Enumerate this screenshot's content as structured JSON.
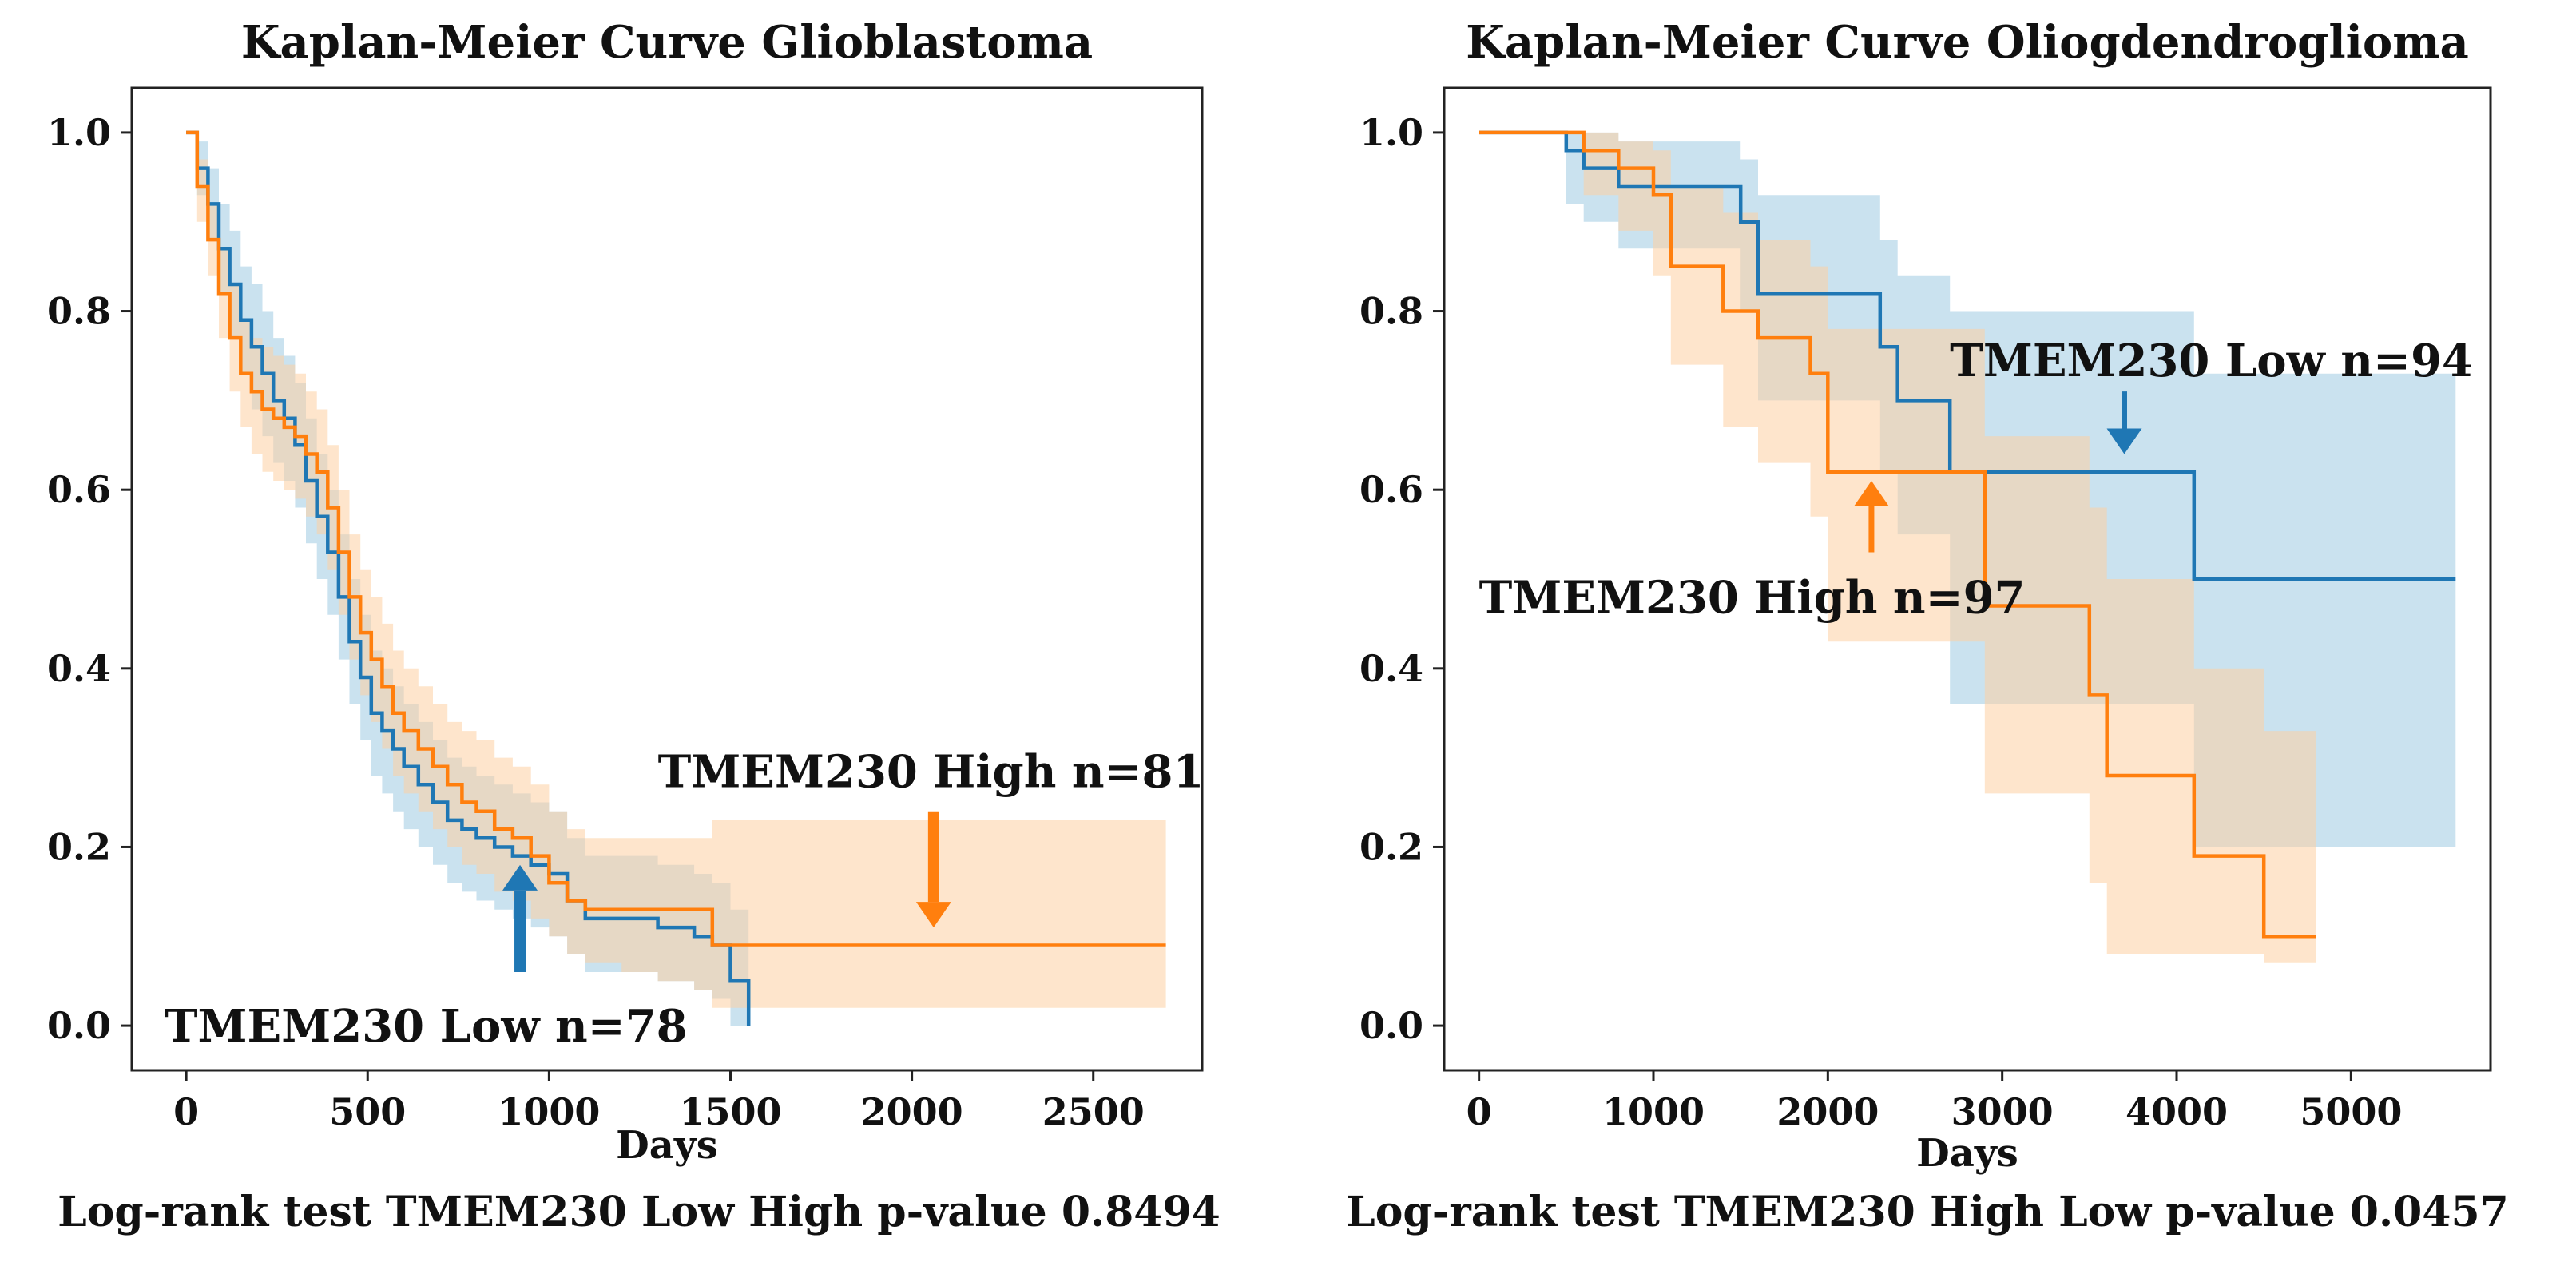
{
  "chart_data": [
    {
      "type": "line",
      "subtype": "kaplan-meier",
      "title": "Kaplan-Meier Curve Glioblastoma",
      "xlabel": "Days",
      "ylabel": "",
      "xlim": [
        -150,
        2800
      ],
      "ylim": [
        -0.05,
        1.05
      ],
      "xticks": [
        0,
        500,
        1000,
        1500,
        2000,
        2500
      ],
      "yticks": [
        0.0,
        0.2,
        0.4,
        0.6,
        0.8,
        1.0
      ],
      "xtick_labels": [
        "0",
        "500",
        "1000",
        "1500",
        "2000",
        "2500"
      ],
      "ytick_labels": [
        "0.0",
        "0.2",
        "0.4",
        "0.6",
        "0.8",
        "1.0"
      ],
      "footer": "Log-rank test TMEM230 Low High p-value 0.8494",
      "series": [
        {
          "name": "TMEM230 Low",
          "color": "#1f77b4",
          "band_color": "#9ecae1",
          "x": [
            0,
            30,
            60,
            90,
            120,
            150,
            180,
            210,
            240,
            270,
            300,
            330,
            360,
            390,
            420,
            450,
            480,
            510,
            540,
            570,
            600,
            640,
            680,
            720,
            760,
            800,
            850,
            900,
            950,
            1000,
            1050,
            1100,
            1200,
            1300,
            1400,
            1450,
            1500,
            1550
          ],
          "y": [
            1.0,
            0.96,
            0.92,
            0.87,
            0.83,
            0.79,
            0.76,
            0.73,
            0.7,
            0.68,
            0.65,
            0.61,
            0.57,
            0.53,
            0.48,
            0.43,
            0.39,
            0.35,
            0.33,
            0.31,
            0.29,
            0.27,
            0.25,
            0.23,
            0.22,
            0.21,
            0.2,
            0.19,
            0.18,
            0.17,
            0.14,
            0.12,
            0.12,
            0.11,
            0.1,
            0.09,
            0.05,
            0.0
          ],
          "lower": [
            1.0,
            0.93,
            0.88,
            0.82,
            0.77,
            0.73,
            0.69,
            0.66,
            0.63,
            0.61,
            0.58,
            0.54,
            0.5,
            0.46,
            0.41,
            0.36,
            0.32,
            0.28,
            0.26,
            0.24,
            0.22,
            0.2,
            0.18,
            0.16,
            0.15,
            0.14,
            0.13,
            0.12,
            0.11,
            0.1,
            0.08,
            0.06,
            0.06,
            0.05,
            0.04,
            0.03,
            0.0,
            0.0
          ],
          "upper": [
            1.0,
            0.99,
            0.96,
            0.92,
            0.89,
            0.85,
            0.83,
            0.8,
            0.77,
            0.75,
            0.72,
            0.68,
            0.64,
            0.6,
            0.55,
            0.5,
            0.46,
            0.42,
            0.4,
            0.38,
            0.36,
            0.34,
            0.32,
            0.3,
            0.29,
            0.28,
            0.27,
            0.26,
            0.25,
            0.24,
            0.21,
            0.19,
            0.19,
            0.18,
            0.17,
            0.16,
            0.13,
            0.08
          ]
        },
        {
          "name": "TMEM230 High",
          "color": "#ff7f0e",
          "band_color": "#fdd0a2",
          "x": [
            0,
            30,
            60,
            90,
            120,
            150,
            180,
            210,
            240,
            270,
            300,
            330,
            360,
            390,
            420,
            450,
            480,
            510,
            540,
            570,
            600,
            640,
            680,
            720,
            760,
            800,
            850,
            900,
            950,
            1000,
            1050,
            1100,
            1200,
            1300,
            1400,
            1450,
            2700
          ],
          "y": [
            1.0,
            0.94,
            0.88,
            0.82,
            0.77,
            0.73,
            0.71,
            0.69,
            0.68,
            0.67,
            0.66,
            0.64,
            0.62,
            0.58,
            0.53,
            0.48,
            0.44,
            0.41,
            0.38,
            0.35,
            0.33,
            0.31,
            0.29,
            0.27,
            0.25,
            0.24,
            0.22,
            0.21,
            0.19,
            0.16,
            0.14,
            0.13,
            0.13,
            0.13,
            0.13,
            0.09,
            0.09
          ],
          "lower": [
            1.0,
            0.9,
            0.84,
            0.77,
            0.71,
            0.67,
            0.64,
            0.62,
            0.61,
            0.6,
            0.59,
            0.57,
            0.55,
            0.51,
            0.46,
            0.41,
            0.37,
            0.34,
            0.31,
            0.28,
            0.26,
            0.24,
            0.22,
            0.2,
            0.18,
            0.17,
            0.15,
            0.14,
            0.12,
            0.1,
            0.08,
            0.07,
            0.06,
            0.05,
            0.04,
            0.02,
            0.02
          ],
          "upper": [
            1.0,
            0.97,
            0.92,
            0.87,
            0.83,
            0.79,
            0.77,
            0.76,
            0.75,
            0.74,
            0.73,
            0.71,
            0.69,
            0.65,
            0.6,
            0.55,
            0.51,
            0.48,
            0.45,
            0.42,
            0.4,
            0.38,
            0.36,
            0.34,
            0.33,
            0.32,
            0.3,
            0.29,
            0.27,
            0.24,
            0.22,
            0.21,
            0.21,
            0.21,
            0.21,
            0.23,
            0.23
          ]
        }
      ],
      "annotations": [
        {
          "text": "TMEM230 High n=81",
          "series": "TMEM230 High",
          "arrow_direction": "down",
          "arrow_x": 2060,
          "arrow_from": 0.24,
          "arrow_to": 0.11,
          "label_x": 1300,
          "label_y": 0.285
        },
        {
          "text": "TMEM230 Low n=78",
          "series": "TMEM230 Low",
          "arrow_direction": "up",
          "arrow_x": 920,
          "arrow_from": 0.06,
          "arrow_to": 0.18,
          "label_x": -60,
          "label_y": 0.0
        }
      ]
    },
    {
      "type": "line",
      "subtype": "kaplan-meier",
      "title": "Kaplan-Meier Curve Oliogdendroglioma",
      "xlabel": "Days",
      "ylabel": "",
      "xlim": [
        -200,
        5800
      ],
      "ylim": [
        -0.05,
        1.05
      ],
      "xticks": [
        0,
        1000,
        2000,
        3000,
        4000,
        5000
      ],
      "yticks": [
        0.0,
        0.2,
        0.4,
        0.6,
        0.8,
        1.0
      ],
      "xtick_labels": [
        "0",
        "1000",
        "2000",
        "3000",
        "4000",
        "5000"
      ],
      "ytick_labels": [
        "0.0",
        "0.2",
        "0.4",
        "0.6",
        "0.8",
        "1.0"
      ],
      "footer": "Log-rank test TMEM230 High Low p-value 0.0457",
      "series": [
        {
          "name": "TMEM230 Low",
          "color": "#1f77b4",
          "band_color": "#9ecae1",
          "x": [
            0,
            500,
            600,
            800,
            1500,
            1600,
            2300,
            2400,
            2700,
            2900,
            4100,
            5600
          ],
          "y": [
            1.0,
            0.98,
            0.96,
            0.94,
            0.9,
            0.82,
            0.76,
            0.7,
            0.62,
            0.62,
            0.5,
            0.5
          ],
          "lower": [
            1.0,
            0.92,
            0.9,
            0.87,
            0.8,
            0.7,
            0.62,
            0.55,
            0.36,
            0.36,
            0.2,
            0.2
          ],
          "upper": [
            1.0,
            1.0,
            1.0,
            0.99,
            0.97,
            0.93,
            0.88,
            0.84,
            0.8,
            0.8,
            0.73,
            0.73
          ]
        },
        {
          "name": "TMEM230 High",
          "color": "#ff7f0e",
          "band_color": "#fdd0a2",
          "x": [
            0,
            600,
            800,
            1000,
            1100,
            1400,
            1600,
            1900,
            2000,
            2900,
            3500,
            3600,
            4100,
            4500,
            4800
          ],
          "y": [
            1.0,
            0.98,
            0.96,
            0.93,
            0.85,
            0.8,
            0.77,
            0.73,
            0.62,
            0.47,
            0.37,
            0.28,
            0.19,
            0.1,
            0.1
          ],
          "lower": [
            1.0,
            0.93,
            0.89,
            0.84,
            0.74,
            0.67,
            0.63,
            0.57,
            0.43,
            0.26,
            0.16,
            0.08,
            0.08,
            0.07,
            0.07
          ],
          "upper": [
            1.0,
            1.0,
            0.99,
            0.98,
            0.94,
            0.91,
            0.88,
            0.85,
            0.78,
            0.66,
            0.58,
            0.5,
            0.4,
            0.33,
            0.33
          ]
        }
      ],
      "annotations": [
        {
          "text": "TMEM230 Low n=94",
          "series": "TMEM230 Low",
          "arrow_direction": "down",
          "arrow_x": 3700,
          "arrow_from": 0.71,
          "arrow_to": 0.64,
          "label_x": 2700,
          "label_y": 0.745
        },
        {
          "text": "TMEM230 High n=97",
          "series": "TMEM230 High",
          "arrow_direction": "up",
          "arrow_x": 2250,
          "arrow_from": 0.53,
          "arrow_to": 0.61,
          "label_x": 0,
          "label_y": 0.48
        }
      ]
    }
  ]
}
